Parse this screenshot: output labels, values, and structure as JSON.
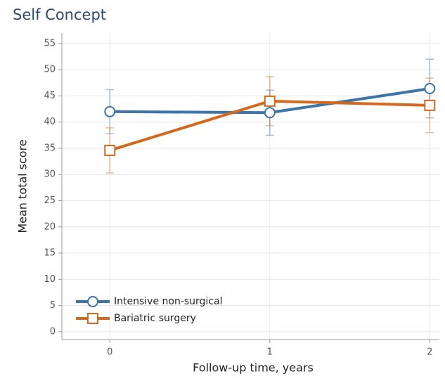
{
  "chart_data": {
    "type": "line",
    "title": "Self Concept",
    "x_label": "Follow-up time, years",
    "y_label": "Mean total score",
    "x": [
      0,
      1,
      2
    ],
    "series": [
      {
        "name": "Intensive non-surgical",
        "color": "#3e74a8",
        "marker": "circle",
        "values": [
          42,
          41.8,
          46.4
        ],
        "errors": [
          4.2,
          4.3,
          5.6
        ]
      },
      {
        "name": "Bariatric surgery",
        "color": "#d2691e",
        "marker": "square",
        "values": [
          34.6,
          44,
          43.2
        ],
        "errors": [
          4.3,
          4.7,
          5.2
        ]
      }
    ],
    "xlim": [
      -0.3,
      2.06
    ],
    "xticks": [
      0,
      1,
      2
    ],
    "ylim": [
      -1.5,
      57
    ],
    "yticks": [
      0,
      5,
      10,
      15,
      20,
      25,
      30,
      35,
      40,
      45,
      50,
      55
    ],
    "grid": true,
    "legend": "lower left"
  }
}
